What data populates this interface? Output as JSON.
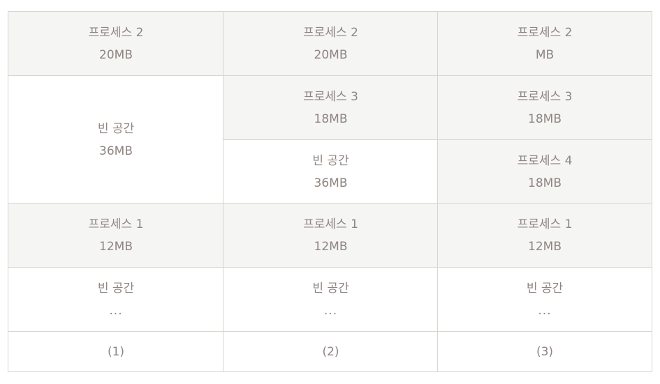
{
  "columns": [
    {
      "blocks": [
        {
          "line1": "프로세스 2",
          "line2": "20MB"
        },
        {
          "line1": "빈 공간",
          "line2": "36MB"
        },
        {
          "line1": "프로세스 1",
          "line2": "12MB"
        },
        {
          "line1": "빈 공간",
          "line2": "..."
        }
      ],
      "caption": "(1)"
    },
    {
      "blocks": [
        {
          "line1": "프로세스 2",
          "line2": "20MB"
        },
        {
          "line1": "프로세스 3",
          "line2": "18MB"
        },
        {
          "line1": "빈 공간",
          "line2": "36MB"
        },
        {
          "line1": "프로세스 1",
          "line2": "12MB"
        },
        {
          "line1": "빈 공간",
          "line2": "..."
        }
      ],
      "caption": "(2)"
    },
    {
      "blocks": [
        {
          "line1": "프로세스 2",
          "line2": "MB"
        },
        {
          "line1": "프로세스 3",
          "line2": "18MB"
        },
        {
          "line1": "프로세스 4",
          "line2": "18MB"
        },
        {
          "line1": "프로세스 1",
          "line2": "12MB"
        },
        {
          "line1": "빈 공간",
          "line2": "..."
        }
      ],
      "caption": "(3)"
    }
  ]
}
